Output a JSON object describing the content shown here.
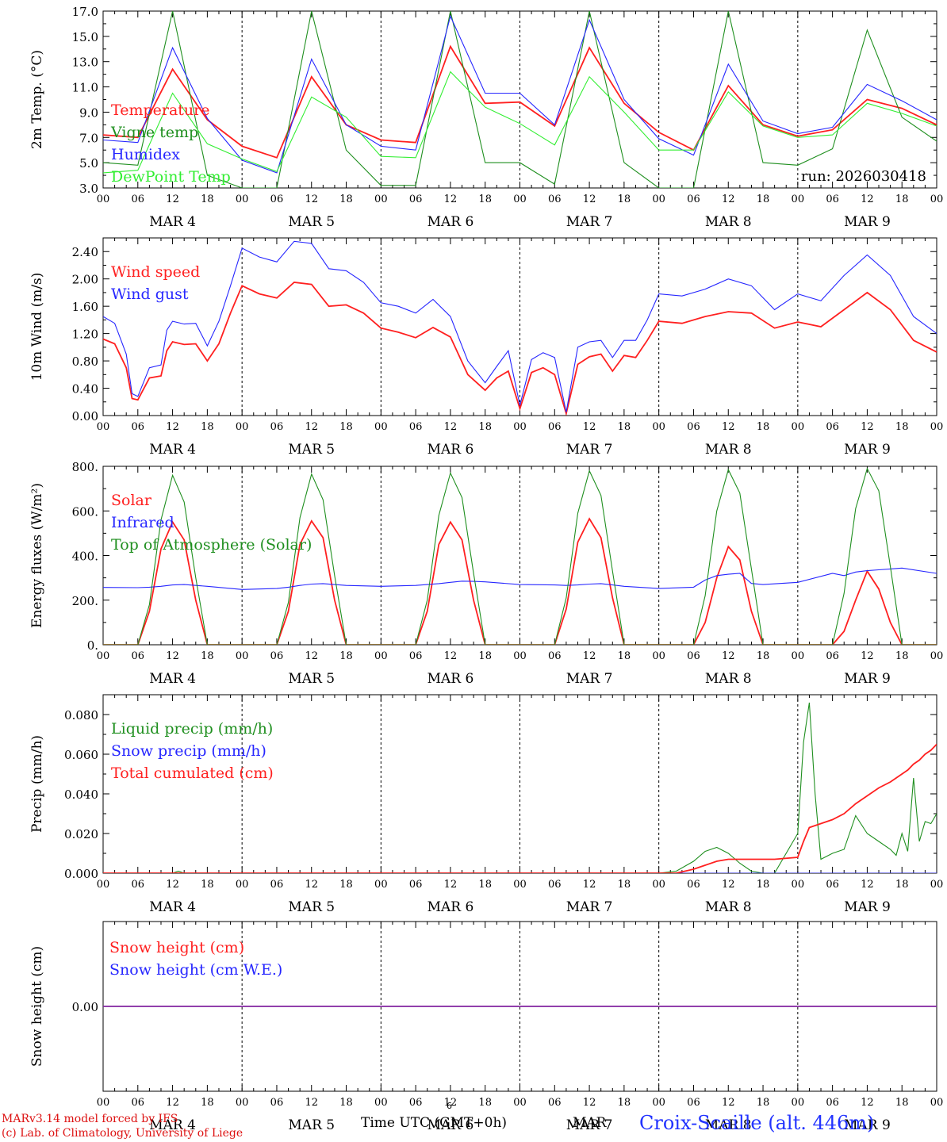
{
  "footer": {
    "credit_line1": "MARv3.14 model forced by IFS",
    "credit_line2": "(c) Lab. of Climatology, University of Liege",
    "time_axis_label": "Time UTC (GMT+0h)",
    "month_label": "MAR",
    "month_number": "6",
    "station": "Croix-Scaille (alt. 446m)"
  },
  "colors": {
    "red": "#ff2020",
    "green_dark": "#1f8f1f",
    "blue": "#2626ff",
    "green_light": "#33ee33",
    "footer_red": "#dd1111",
    "station_blue": "#2233ff"
  },
  "time_axis": {
    "hour_ticks": [
      "00",
      "06",
      "12",
      "18"
    ],
    "days": [
      "MAR 4",
      "MAR 5",
      "MAR 6",
      "MAR 7",
      "MAR 8",
      "MAR 9"
    ],
    "hours_total": 144
  },
  "chart_data": [
    {
      "id": "temp",
      "type": "line",
      "ylabel": "2m Temp. (°C)",
      "ylim": [
        3.0,
        17.0
      ],
      "yticks": [
        "3.0",
        "5.0",
        "7.0",
        "9.0",
        "11.0",
        "13.0",
        "15.0",
        "17.0"
      ],
      "yticks_values": [
        3,
        5,
        7,
        9,
        11,
        13,
        15,
        17
      ],
      "run_label": "run: 2026030418",
      "x": [
        0,
        6,
        12,
        18,
        24,
        30,
        36,
        42,
        48,
        54,
        60,
        66,
        72,
        78,
        84,
        90,
        96,
        102,
        108,
        114,
        120,
        126,
        132,
        138,
        144
      ],
      "series": [
        {
          "name": "Temperature",
          "color": "red",
          "values": [
            7.2,
            7.0,
            12.4,
            8.4,
            6.3,
            5.4,
            11.8,
            8.0,
            6.8,
            6.6,
            14.2,
            9.7,
            9.8,
            7.9,
            14.1,
            9.7,
            7.4,
            6.0,
            11.1,
            8.0,
            7.1,
            7.6,
            10.0,
            9.3,
            8.0
          ]
        },
        {
          "name": "Vigne temp",
          "color": "green_dark",
          "values": [
            5.0,
            4.8,
            17.0,
            4.0,
            3.0,
            3.0,
            17.0,
            6.0,
            3.2,
            3.2,
            17.0,
            5.0,
            5.0,
            3.3,
            17.0,
            5.0,
            3.0,
            3.0,
            17.0,
            5.0,
            4.8,
            6.1,
            15.5,
            8.6,
            6.7
          ]
        },
        {
          "name": "Humidex",
          "color": "blue",
          "values": [
            6.8,
            6.6,
            14.1,
            8.5,
            5.2,
            4.2,
            13.2,
            8.0,
            6.3,
            6.0,
            16.6,
            10.5,
            10.5,
            8.0,
            16.3,
            10.0,
            6.9,
            5.6,
            12.8,
            8.3,
            7.3,
            7.8,
            11.2,
            9.9,
            8.4
          ]
        },
        {
          "name": "DewPoint Temp",
          "color": "green_light",
          "values": [
            4.2,
            4.4,
            10.5,
            6.5,
            5.3,
            4.3,
            10.2,
            8.6,
            5.5,
            5.4,
            12.2,
            9.4,
            8.1,
            6.4,
            11.8,
            9.0,
            6.0,
            6.0,
            10.6,
            7.9,
            7.0,
            7.2,
            9.7,
            8.9,
            7.9
          ]
        }
      ]
    },
    {
      "id": "wind",
      "type": "line",
      "ylabel": "10m Wind (m/s)",
      "ylim": [
        0.0,
        2.6
      ],
      "yticks": [
        "0.00",
        "0.40",
        "0.80",
        "1.20",
        "1.60",
        "2.00",
        "2.40"
      ],
      "yticks_values": [
        0,
        0.4,
        0.8,
        1.2,
        1.6,
        2.0,
        2.4
      ],
      "x": [
        0,
        2,
        4,
        5,
        6,
        8,
        10,
        11,
        12,
        14,
        16,
        18,
        20,
        22,
        24,
        27,
        30,
        33,
        36,
        39,
        42,
        45,
        48,
        51,
        54,
        57,
        60,
        63,
        66,
        68,
        70,
        72,
        74,
        76,
        78,
        80,
        82,
        84,
        86,
        88,
        90,
        92,
        94,
        96,
        100,
        104,
        108,
        112,
        116,
        120,
        124,
        128,
        132,
        136,
        140,
        144
      ],
      "series": [
        {
          "name": "Wind speed",
          "color": "red",
          "values": [
            1.12,
            1.05,
            0.7,
            0.25,
            0.23,
            0.55,
            0.58,
            0.95,
            1.08,
            1.04,
            1.05,
            0.8,
            1.05,
            1.5,
            1.9,
            1.78,
            1.72,
            1.95,
            1.92,
            1.6,
            1.62,
            1.5,
            1.28,
            1.22,
            1.14,
            1.29,
            1.15,
            0.6,
            0.37,
            0.55,
            0.65,
            0.1,
            0.63,
            0.7,
            0.6,
            0.03,
            0.75,
            0.86,
            0.9,
            0.65,
            0.88,
            0.85,
            1.1,
            1.38,
            1.35,
            1.45,
            1.52,
            1.5,
            1.28,
            1.37,
            1.3,
            1.55,
            1.8,
            1.55,
            1.1,
            0.93
          ]
        },
        {
          "name": "Wind gust",
          "color": "blue",
          "values": [
            1.45,
            1.35,
            0.9,
            0.32,
            0.28,
            0.7,
            0.74,
            1.25,
            1.38,
            1.34,
            1.35,
            1.02,
            1.38,
            1.9,
            2.45,
            2.32,
            2.25,
            2.55,
            2.52,
            2.15,
            2.12,
            1.95,
            1.65,
            1.6,
            1.5,
            1.7,
            1.45,
            0.8,
            0.48,
            0.72,
            0.95,
            0.15,
            0.82,
            0.92,
            0.85,
            0.05,
            1.0,
            1.08,
            1.1,
            0.85,
            1.1,
            1.1,
            1.4,
            1.78,
            1.75,
            1.85,
            2.0,
            1.9,
            1.55,
            1.78,
            1.68,
            2.05,
            2.35,
            2.05,
            1.45,
            1.2
          ]
        }
      ]
    },
    {
      "id": "energy",
      "type": "line",
      "ylabel": "Energy fluxes (W/m²)",
      "ylim": [
        0,
        800
      ],
      "yticks": [
        "0.",
        "200.",
        "400.",
        "600.",
        "800."
      ],
      "yticks_values": [
        0,
        200,
        400,
        600,
        800
      ],
      "x": [
        0,
        6,
        8,
        10,
        12,
        14,
        16,
        18,
        24,
        30,
        32,
        34,
        36,
        38,
        40,
        42,
        48,
        54,
        56,
        58,
        60,
        62,
        64,
        66,
        72,
        78,
        80,
        82,
        84,
        86,
        88,
        90,
        96,
        102,
        104,
        106,
        108,
        110,
        112,
        114,
        120,
        126,
        128,
        130,
        132,
        134,
        136,
        138,
        144
      ],
      "series": [
        {
          "name": "Solar",
          "color": "red",
          "values": [
            0,
            0,
            150,
            430,
            550,
            470,
            200,
            0,
            0,
            0,
            150,
            450,
            555,
            480,
            200,
            0,
            0,
            0,
            150,
            450,
            550,
            470,
            200,
            0,
            0,
            0,
            160,
            460,
            565,
            480,
            210,
            0,
            0,
            0,
            100,
            300,
            440,
            380,
            150,
            0,
            0,
            0,
            60,
            200,
            330,
            250,
            100,
            0,
            0
          ]
        },
        {
          "name": "Infrared",
          "color": "blue",
          "values": [
            257,
            256,
            258,
            262,
            268,
            270,
            266,
            262,
            248,
            252,
            258,
            266,
            272,
            274,
            270,
            266,
            262,
            266,
            270,
            274,
            280,
            285,
            284,
            282,
            270,
            268,
            266,
            268,
            272,
            274,
            268,
            262,
            252,
            258,
            290,
            310,
            316,
            320,
            275,
            270,
            280,
            320,
            310,
            326,
            332,
            336,
            340,
            344,
            320
          ]
        },
        {
          "name": "Top of Atmosphere (Solar)",
          "color": "green_dark",
          "values": [
            0,
            0,
            180,
            560,
            760,
            640,
            300,
            0,
            0,
            0,
            190,
            570,
            765,
            650,
            310,
            0,
            0,
            0,
            200,
            580,
            770,
            660,
            320,
            0,
            0,
            0,
            210,
            590,
            780,
            670,
            330,
            0,
            0,
            0,
            220,
            600,
            785,
            680,
            340,
            0,
            0,
            0,
            230,
            610,
            790,
            690,
            350,
            0,
            0
          ]
        }
      ]
    },
    {
      "id": "precip",
      "type": "line",
      "ylabel": "Precip (mm/h)",
      "ylim": [
        0.0,
        0.09
      ],
      "yticks": [
        "0.000",
        "0.020",
        "0.040",
        "0.060",
        "0.080"
      ],
      "yticks_values": [
        0,
        0.02,
        0.04,
        0.06,
        0.08
      ],
      "x": [
        0,
        12,
        13,
        14,
        24,
        48,
        72,
        96,
        99,
        102,
        104,
        106,
        108,
        110,
        112,
        114,
        116,
        120,
        121,
        122,
        123,
        124,
        126,
        128,
        130,
        132,
        134,
        136,
        137,
        138,
        139,
        140,
        141,
        142,
        143,
        144
      ],
      "series": [
        {
          "name": "Liquid precip (mm/h)",
          "color": "green_dark",
          "values": [
            0,
            0,
            0.001,
            0,
            0,
            0,
            0,
            0,
            0.001,
            0.006,
            0.011,
            0.013,
            0.01,
            0.005,
            0.001,
            0,
            0,
            0.02,
            0.066,
            0.086,
            0.04,
            0.007,
            0.01,
            0.012,
            0.029,
            0.02,
            0.016,
            0.012,
            0.009,
            0.02,
            0.011,
            0.048,
            0.016,
            0.026,
            0.025,
            0.03
          ]
        },
        {
          "name": "Snow precip (mm/h)",
          "color": "blue",
          "values": [
            0,
            0,
            0,
            0,
            0,
            0,
            0,
            0,
            0,
            0,
            0,
            0,
            0,
            0,
            0,
            0,
            0,
            0,
            0,
            0,
            0,
            0,
            0,
            0,
            0,
            0,
            0,
            0,
            0,
            0,
            0,
            0,
            0,
            0,
            0,
            0
          ]
        },
        {
          "name": "Total cumulated (cm)",
          "color": "red",
          "values": [
            0,
            0,
            0,
            0,
            0,
            0,
            0,
            0,
            0,
            0.002,
            0.004,
            0.006,
            0.007,
            0.007,
            0.007,
            0.007,
            0.007,
            0.008,
            0.016,
            0.023,
            0.024,
            0.025,
            0.027,
            0.03,
            0.035,
            0.039,
            0.043,
            0.046,
            0.048,
            0.05,
            0.052,
            0.055,
            0.057,
            0.06,
            0.062,
            0.065
          ]
        }
      ]
    },
    {
      "id": "snow",
      "type": "line",
      "ylabel": "Snow height (cm)",
      "ylim": [
        -0.1,
        0.1
      ],
      "yticks": [
        "0.00"
      ],
      "yticks_values": [
        0
      ],
      "x": [
        0,
        144
      ],
      "series": [
        {
          "name": "Snow height (cm)",
          "color": "red",
          "values": [
            0,
            0
          ]
        },
        {
          "name": "Snow height (cm W.E.)",
          "color": "blue",
          "values": [
            0,
            0
          ]
        }
      ]
    }
  ]
}
